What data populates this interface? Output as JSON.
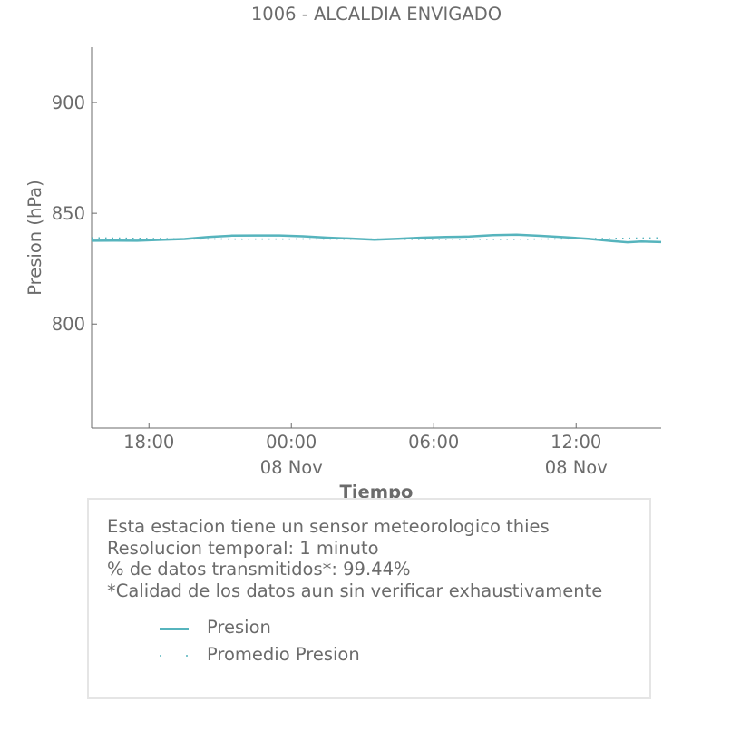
{
  "chart_data": {
    "type": "line",
    "title": "1006 - ALCALDIA ENVIGADO",
    "xlabel": "Tiempo",
    "ylabel": "Presion (hPa)",
    "ylim": [
      753,
      925
    ],
    "xlim": [
      "2023-11-07 15:35",
      "2023-11-08 15:35"
    ],
    "x_ticks": [
      {
        "time": "2023-11-07 18:00",
        "label": "18:00",
        "sublabel": ""
      },
      {
        "time": "2023-11-08 00:00",
        "label": "00:00",
        "sublabel": "08 Nov"
      },
      {
        "time": "2023-11-08 06:00",
        "label": "06:00",
        "sublabel": ""
      },
      {
        "time": "2023-11-08 12:00",
        "label": "12:00",
        "sublabel": "08 Nov"
      }
    ],
    "y_ticks": [
      800,
      850,
      900
    ],
    "grid": false,
    "series": [
      {
        "name": "Presion",
        "style": "solid",
        "color": "#56b4bd",
        "points": [
          [
            "2023-11-07 15:35",
            837.6
          ],
          [
            "2023-11-07 16:30",
            837.7
          ],
          [
            "2023-11-07 17:30",
            837.6
          ],
          [
            "2023-11-07 18:30",
            838.0
          ],
          [
            "2023-11-07 19:30",
            838.4
          ],
          [
            "2023-11-07 20:30",
            839.3
          ],
          [
            "2023-11-07 21:30",
            839.9
          ],
          [
            "2023-11-07 22:30",
            840.0
          ],
          [
            "2023-11-07 23:30",
            840.0
          ],
          [
            "2023-11-08 00:30",
            839.6
          ],
          [
            "2023-11-08 01:30",
            839.0
          ],
          [
            "2023-11-08 02:30",
            838.6
          ],
          [
            "2023-11-08 03:30",
            838.1
          ],
          [
            "2023-11-08 04:30",
            838.5
          ],
          [
            "2023-11-08 05:30",
            839.0
          ],
          [
            "2023-11-08 06:30",
            839.3
          ],
          [
            "2023-11-08 07:30",
            839.5
          ],
          [
            "2023-11-08 08:30",
            840.1
          ],
          [
            "2023-11-08 09:30",
            840.3
          ],
          [
            "2023-11-08 10:30",
            839.8
          ],
          [
            "2023-11-08 11:30",
            839.2
          ],
          [
            "2023-11-08 12:30",
            838.5
          ],
          [
            "2023-11-08 13:30",
            837.5
          ],
          [
            "2023-11-08 14:10",
            836.9
          ],
          [
            "2023-11-08 14:45",
            837.3
          ],
          [
            "2023-11-08 15:35",
            837.0
          ]
        ]
      },
      {
        "name": "Promedio Presion",
        "style": "dotted",
        "color": "#56b4bd",
        "points": [
          [
            "2023-11-07 15:35",
            838.9
          ],
          [
            "2023-11-07 19:00",
            838.5
          ],
          [
            "2023-11-07 22:00",
            838.3
          ],
          [
            "2023-11-08 01:00",
            838.4
          ],
          [
            "2023-11-08 04:00",
            838.3
          ],
          [
            "2023-11-08 07:00",
            838.3
          ],
          [
            "2023-11-08 10:00",
            838.3
          ],
          [
            "2023-11-08 13:00",
            838.6
          ],
          [
            "2023-11-08 15:35",
            838.9
          ]
        ]
      }
    ]
  },
  "info": {
    "lines": [
      "Esta estacion tiene un sensor meteorologico thies",
      "Resolucion temporal: 1 minuto",
      "% de datos transmitidos*: 99.44%",
      "*Calidad de los datos aun sin verificar exhaustivamente"
    ],
    "legend": {
      "presion": "Presion",
      "promedio": "Promedio Presion"
    }
  }
}
